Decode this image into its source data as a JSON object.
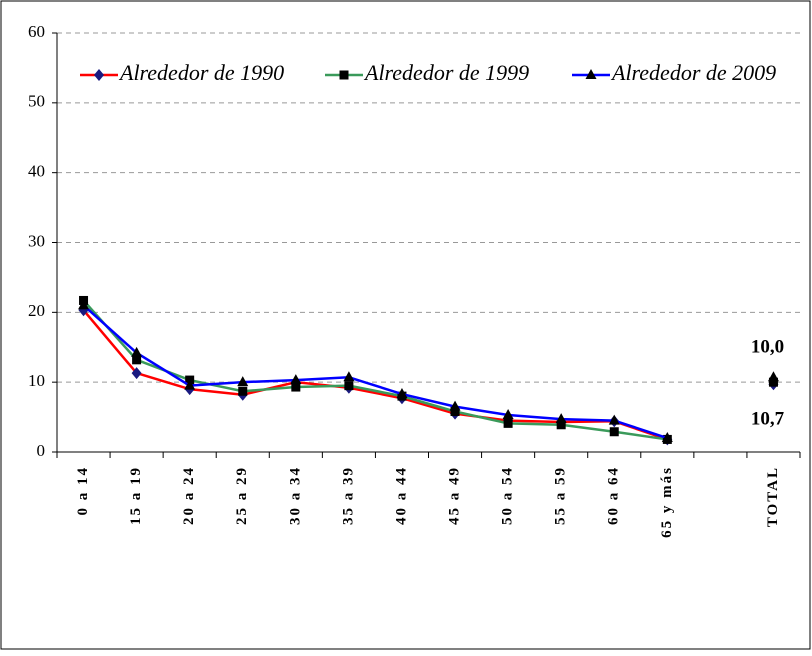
{
  "chart_data": {
    "type": "line",
    "categories": [
      "0 a 14",
      "15 a 19",
      "20 a 24",
      "25 a 29",
      "30 a 34",
      "35 a 39",
      "40 a 44",
      "45 a 49",
      "50 a 54",
      "55 a 59",
      "60 a 64",
      "65 y más",
      null,
      "TOTAL"
    ],
    "series": [
      {
        "name": "Alrededor de 1990",
        "color": "#ff0000",
        "marker_color": "#1a1a80",
        "marker": "diamond",
        "values": [
          20.3,
          11.3,
          9.0,
          8.2,
          10.0,
          9.2,
          7.7,
          5.5,
          4.5,
          4.3,
          4.4,
          1.8,
          null,
          9.7
        ]
      },
      {
        "name": "Alrededor de 1999",
        "color": "#3a9a5a",
        "marker_color": "#000000",
        "marker": "square",
        "values": [
          21.7,
          13.2,
          10.3,
          8.7,
          9.3,
          9.5,
          8.0,
          5.8,
          4.1,
          3.9,
          2.9,
          1.8,
          null,
          10.0
        ]
      },
      {
        "name": "Alrededor de 2009",
        "color": "#0000ff",
        "marker_color": "#000000",
        "marker": "triangle",
        "values": [
          21.0,
          14.2,
          9.5,
          10.0,
          10.3,
          10.7,
          8.3,
          6.5,
          5.3,
          4.7,
          4.5,
          2.0,
          null,
          10.7
        ]
      }
    ],
    "annotations": [
      "10,0",
      "10,7"
    ],
    "ylim": [
      0,
      60
    ],
    "yticks": [
      0,
      10,
      20,
      30,
      40,
      50,
      60
    ],
    "grid": true
  }
}
